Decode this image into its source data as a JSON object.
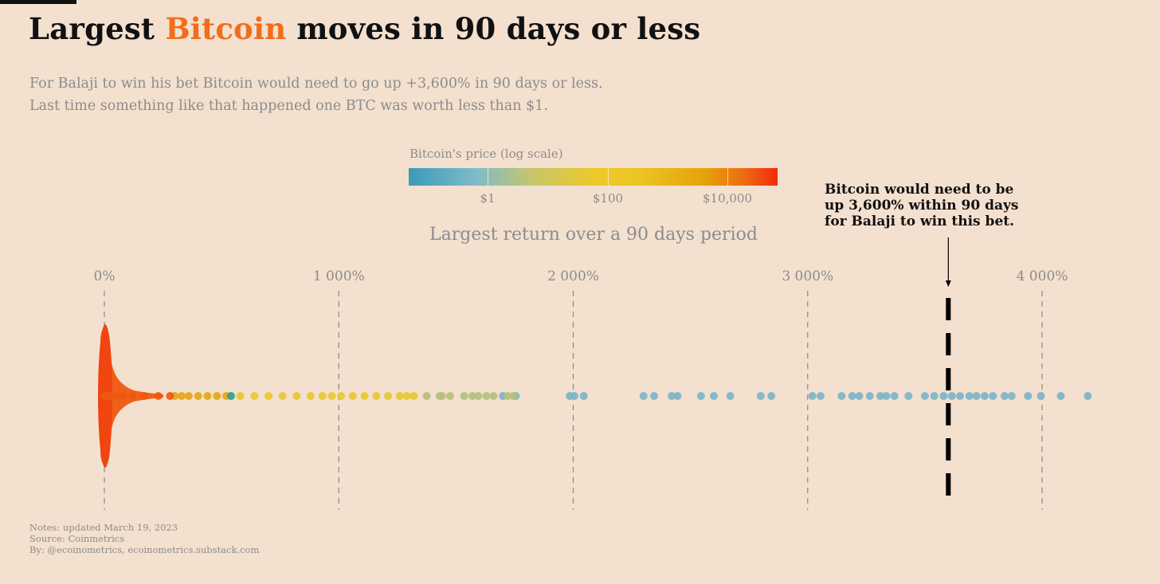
{
  "title": {
    "prefix": "Largest ",
    "highlight": "Bitcoin",
    "suffix": " moves in 90 days or less"
  },
  "subtitle": [
    "For Balaji to win his bet Bitcoin would need to go up +3,600% in 90 days or less.",
    "Last time something like that happened one BTC was worth less than $1."
  ],
  "notes": [
    "Notes: updated March 19, 2023",
    "Source: Coinmetrics",
    "By: @ecoinometrics, ecoinometrics.substack.com"
  ],
  "chart_data": {
    "type": "scatter",
    "xlabel": "Largest return over a 90 days period",
    "x_unit": "%",
    "xlim": [
      0,
      4200
    ],
    "x_ticks": [
      0,
      1000,
      2000,
      3000,
      4000
    ],
    "x_tick_labels": [
      "0%",
      "1 000%",
      "2 000%",
      "3 000%",
      "4 000%"
    ],
    "color_scale": {
      "title": "Bitcoin's price (log scale)",
      "ticks": [
        "$1",
        "$100",
        "$10,000"
      ],
      "colors": [
        "#3b9ab8",
        "#7fbbc9",
        "#c8c66a",
        "#ecc92b",
        "#e5a40a",
        "#ef6a12",
        "#f22a0c"
      ]
    },
    "series": [
      {
        "color": "#7ab4c6",
        "x": [
          1700,
          1755,
          1985,
          2005,
          2045,
          2300,
          2345,
          2420,
          2445,
          2545,
          2600,
          2670,
          2800,
          2845,
          3020,
          3055,
          3145,
          3190,
          3220,
          3265,
          3310,
          3335,
          3370,
          3430,
          3500,
          3540,
          3580,
          3615,
          3650,
          3690,
          3720,
          3755,
          3790,
          3840,
          3870,
          3940,
          3995,
          4080,
          4195
        ]
      },
      {
        "color": "#b5c07a",
        "x": [
          1375,
          1430,
          1440,
          1475,
          1535,
          1570,
          1595,
          1630,
          1660,
          1720,
          1745
        ]
      },
      {
        "color": "#e8c62e",
        "x": [
          580,
          640,
          700,
          760,
          820,
          880,
          930,
          970,
          1010,
          1060,
          1110,
          1160,
          1210,
          1260,
          1290,
          1320
        ]
      },
      {
        "color": "#e6a414",
        "x": [
          300,
          330,
          360,
          400,
          440,
          480,
          520
        ]
      },
      {
        "color": "#2aa08a",
        "x": [
          540
        ]
      },
      {
        "color": "#ef5810",
        "x": [
          0,
          10,
          20,
          30,
          50,
          80,
          120,
          170,
          230,
          280
        ]
      }
    ],
    "annotation": {
      "x": 3600,
      "lines": [
        "Bitcoin would need to be",
        "up 3,600% within 90 days",
        "for Balaji to win this bet."
      ]
    }
  }
}
